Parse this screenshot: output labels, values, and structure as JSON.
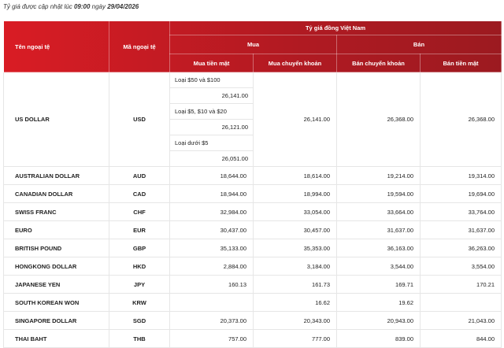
{
  "update_note": {
    "prefix": "Tỷ giá được cập nhật lúc ",
    "time": "09:00",
    "mid": " ngày ",
    "date": "29/04/2026"
  },
  "headers": {
    "name": "Tên ngoại tệ",
    "code": "Mã ngoại tệ",
    "group": "Tỷ giá đồng Việt Nam",
    "buy": "Mua",
    "sell": "Bán",
    "buy_cash": "Mua tiền mặt",
    "buy_transfer": "Mua chuyển khoản",
    "sell_transfer": "Bán chuyển khoản",
    "sell_cash": "Bán tiền mặt"
  },
  "usd": {
    "name": "US DOLLAR",
    "code": "USD",
    "cash": [
      {
        "label": "Loại $50 và $100",
        "value": "26,141.00"
      },
      {
        "label": "Loại $5, $10 và $20",
        "value": "26,121.00"
      },
      {
        "label": "Loại dưới $5",
        "value": "26,051.00"
      }
    ],
    "buy_transfer": "26,141.00",
    "sell_transfer": "26,368.00",
    "sell_cash": "26,368.00"
  },
  "rows": [
    {
      "name": "AUSTRALIAN DOLLAR",
      "code": "AUD",
      "buy_cash": "18,644.00",
      "buy_transfer": "18,614.00",
      "sell_transfer": "19,214.00",
      "sell_cash": "19,314.00"
    },
    {
      "name": "CANADIAN DOLLAR",
      "code": "CAD",
      "buy_cash": "18,944.00",
      "buy_transfer": "18,994.00",
      "sell_transfer": "19,594.00",
      "sell_cash": "19,694.00"
    },
    {
      "name": "SWISS FRANC",
      "code": "CHF",
      "buy_cash": "32,984.00",
      "buy_transfer": "33,054.00",
      "sell_transfer": "33,664.00",
      "sell_cash": "33,764.00"
    },
    {
      "name": "EURO",
      "code": "EUR",
      "buy_cash": "30,437.00",
      "buy_transfer": "30,457.00",
      "sell_transfer": "31,637.00",
      "sell_cash": "31,637.00"
    },
    {
      "name": "BRITISH POUND",
      "code": "GBP",
      "buy_cash": "35,133.00",
      "buy_transfer": "35,353.00",
      "sell_transfer": "36,163.00",
      "sell_cash": "36,263.00"
    },
    {
      "name": "HONGKONG DOLLAR",
      "code": "HKD",
      "buy_cash": "2,884.00",
      "buy_transfer": "3,184.00",
      "sell_transfer": "3,544.00",
      "sell_cash": "3,554.00"
    },
    {
      "name": "JAPANESE YEN",
      "code": "JPY",
      "buy_cash": "160.13",
      "buy_transfer": "161.73",
      "sell_transfer": "169.71",
      "sell_cash": "170.21"
    },
    {
      "name": "SOUTH KOREAN WON",
      "code": "KRW",
      "buy_cash": "",
      "buy_transfer": "16.62",
      "sell_transfer": "19.62",
      "sell_cash": ""
    },
    {
      "name": "SINGAPORE DOLLAR",
      "code": "SGD",
      "buy_cash": "20,373.00",
      "buy_transfer": "20,343.00",
      "sell_transfer": "20,943.00",
      "sell_cash": "21,043.00"
    },
    {
      "name": "THAI BAHT",
      "code": "THB",
      "buy_cash": "757.00",
      "buy_transfer": "777.00",
      "sell_transfer": "839.00",
      "sell_cash": "844.00"
    }
  ],
  "colors": {
    "header_start": "#d81d25",
    "header_end": "#a51b21"
  }
}
